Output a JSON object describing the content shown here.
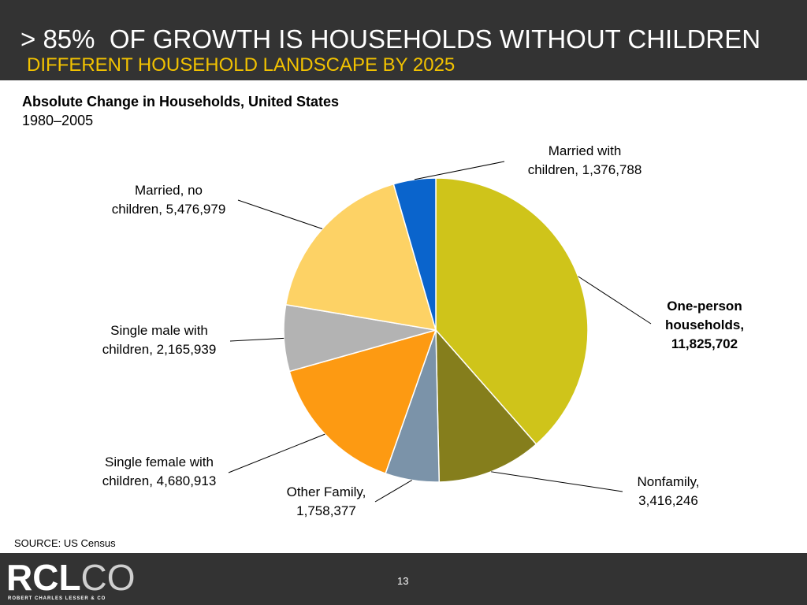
{
  "header": {
    "title": "> 85%  OF GROWTH IS HOUSEHOLDS WITHOUT CHILDREN",
    "subtitle": "DIFFERENT HOUSEHOLD LANDSCAPE BY 2025",
    "bg_color": "#333333",
    "subtitle_color": "#f2c200"
  },
  "chart_data": {
    "type": "pie",
    "title": "Absolute Change in Households, United States",
    "subtitle": "1980–2005",
    "slices": [
      {
        "label_lines": [
          "One-person",
          "households,",
          "11,825,702"
        ],
        "category": "One-person households",
        "value": 11825702,
        "color": "#cfc41a",
        "bold": true
      },
      {
        "label_lines": [
          "Nonfamily,",
          "3,416,246"
        ],
        "category": "Nonfamily",
        "value": 3416246,
        "color": "#857e1c",
        "bold": false
      },
      {
        "label_lines": [
          "Other Family,",
          "1,758,377"
        ],
        "category": "Other Family",
        "value": 1758377,
        "color": "#7b93a9",
        "bold": false
      },
      {
        "label_lines": [
          "Single female with",
          "children, 4,680,913"
        ],
        "category": "Single female with children",
        "value": 4680913,
        "color": "#fd9a12",
        "bold": false
      },
      {
        "label_lines": [
          "Single male with",
          "children, 2,165,939"
        ],
        "category": "Single male with children",
        "value": 2165939,
        "color": "#b3b3b3",
        "bold": false
      },
      {
        "label_lines": [
          "Married, no",
          "children, 5,476,979"
        ],
        "category": "Married, no children",
        "value": 5476979,
        "color": "#fdd265",
        "bold": false
      },
      {
        "label_lines": [
          "Married with",
          "children, 1,376,788"
        ],
        "category": "Married with children",
        "value": 1376788,
        "color": "#0a64cc",
        "bold": false
      }
    ]
  },
  "source": "SOURCE: US Census",
  "footer": {
    "logo_bold": "RCL",
    "logo_thin": "CO",
    "logo_sub": "ROBERT CHARLES LESSER & CO",
    "page_number": "13"
  }
}
